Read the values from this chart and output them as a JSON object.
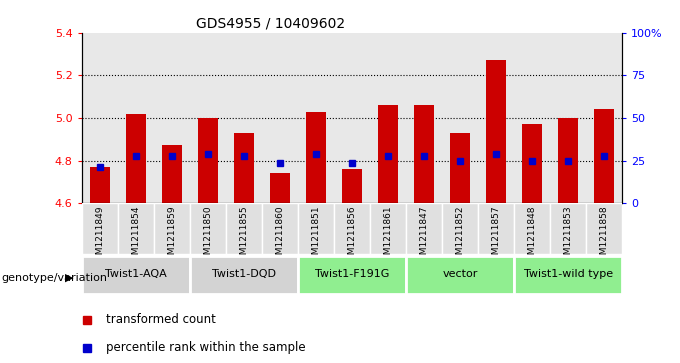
{
  "title": "GDS4955 / 10409602",
  "samples": [
    "GSM1211849",
    "GSM1211854",
    "GSM1211859",
    "GSM1211850",
    "GSM1211855",
    "GSM1211860",
    "GSM1211851",
    "GSM1211856",
    "GSM1211861",
    "GSM1211847",
    "GSM1211852",
    "GSM1211857",
    "GSM1211848",
    "GSM1211853",
    "GSM1211858"
  ],
  "red_values": [
    4.77,
    5.02,
    4.875,
    5.0,
    4.93,
    4.74,
    5.03,
    4.76,
    5.06,
    5.06,
    4.93,
    5.27,
    4.97,
    5.0,
    5.04
  ],
  "blue_values": [
    4.77,
    4.82,
    4.82,
    4.83,
    4.82,
    4.79,
    4.83,
    4.79,
    4.82,
    4.82,
    4.8,
    4.83,
    4.8,
    4.8,
    4.82
  ],
  "ylim_left": [
    4.6,
    5.4
  ],
  "ylim_right": [
    0,
    100
  ],
  "yticks_left": [
    4.6,
    4.8,
    5.0,
    5.2,
    5.4
  ],
  "yticks_right": [
    0,
    25,
    50,
    75,
    100
  ],
  "ytick_labels_right": [
    "0",
    "25",
    "50",
    "75",
    "100%"
  ],
  "groups": [
    {
      "label": "Twist1-AQA",
      "indices": [
        0,
        1,
        2
      ],
      "color": "#d3d3d3"
    },
    {
      "label": "Twist1-DQD",
      "indices": [
        3,
        4,
        5
      ],
      "color": "#d3d3d3"
    },
    {
      "label": "Twist1-F191G",
      "indices": [
        6,
        7,
        8
      ],
      "color": "#90EE90"
    },
    {
      "label": "vector",
      "indices": [
        9,
        10,
        11
      ],
      "color": "#90EE90"
    },
    {
      "label": "Twist1-wild type",
      "indices": [
        12,
        13,
        14
      ],
      "color": "#90EE90"
    }
  ],
  "bar_width": 0.55,
  "bar_base": 4.6,
  "red_color": "#cc0000",
  "blue_color": "#0000cc",
  "group_label_x": "genotype/variation",
  "legend_items": [
    {
      "color": "#cc0000",
      "label": "transformed count"
    },
    {
      "color": "#0000cc",
      "label": "percentile rank within the sample"
    }
  ],
  "bg_color": "#f0f0f0"
}
